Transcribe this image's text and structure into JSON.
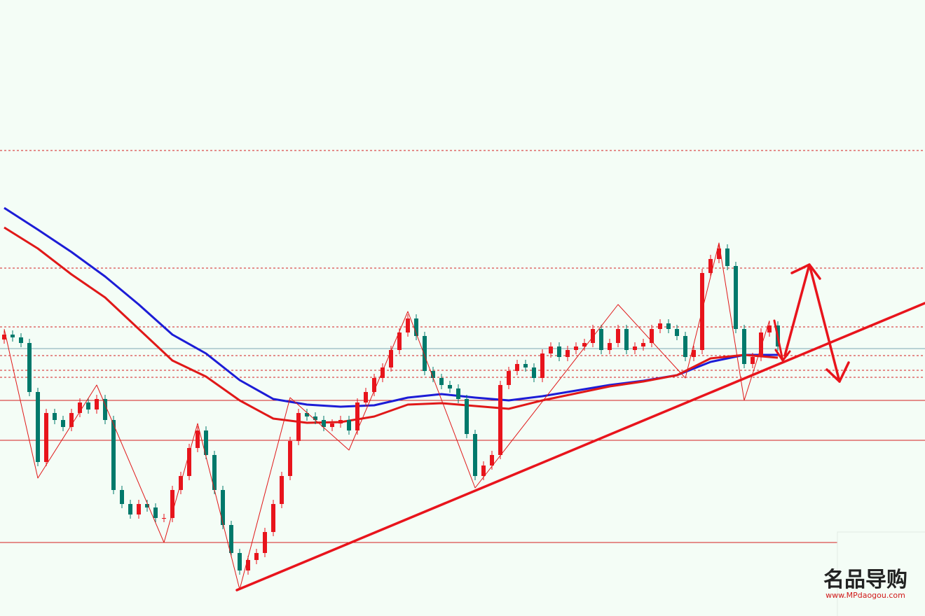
{
  "chart_data": {
    "type": "candlestick",
    "xlim": [
      -0.5,
      109.5
    ],
    "ylim": [
      0,
      880
    ],
    "up_color": "#e8141c",
    "down_color": "#00796b",
    "candles": [
      [
        395,
        408,
        389,
        402
      ],
      [
        402,
        408,
        392,
        398
      ],
      [
        398,
        404,
        384,
        390
      ],
      [
        390,
        396,
        314,
        320
      ],
      [
        320,
        326,
        214,
        220
      ],
      [
        220,
        296,
        214,
        290
      ],
      [
        290,
        296,
        274,
        280
      ],
      [
        280,
        286,
        264,
        270
      ],
      [
        270,
        296,
        264,
        290
      ],
      [
        290,
        311,
        284,
        305
      ],
      [
        305,
        311,
        289,
        295
      ],
      [
        295,
        316,
        289,
        310
      ],
      [
        310,
        316,
        274,
        280
      ],
      [
        280,
        286,
        174,
        180
      ],
      [
        180,
        186,
        154,
        160
      ],
      [
        160,
        166,
        139,
        145
      ],
      [
        145,
        166,
        139,
        160
      ],
      [
        160,
        166,
        149,
        155
      ],
      [
        155,
        161,
        134,
        140
      ],
      [
        140,
        146,
        134,
        140
      ],
      [
        140,
        186,
        134,
        180
      ],
      [
        180,
        206,
        174,
        200
      ],
      [
        200,
        246,
        194,
        240
      ],
      [
        240,
        271,
        234,
        265
      ],
      [
        265,
        271,
        224,
        230
      ],
      [
        230,
        236,
        174,
        180
      ],
      [
        180,
        186,
        124,
        130
      ],
      [
        130,
        136,
        84,
        90
      ],
      [
        90,
        96,
        59,
        65
      ],
      [
        65,
        86,
        59,
        80
      ],
      [
        80,
        96,
        74,
        90
      ],
      [
        90,
        126,
        84,
        120
      ],
      [
        120,
        166,
        114,
        160
      ],
      [
        160,
        206,
        154,
        200
      ],
      [
        200,
        256,
        194,
        250
      ],
      [
        250,
        296,
        244,
        290
      ],
      [
        290,
        296,
        279,
        285
      ],
      [
        285,
        291,
        274,
        280
      ],
      [
        280,
        286,
        264,
        270
      ],
      [
        270,
        281,
        264,
        275
      ],
      [
        275,
        286,
        269,
        280
      ],
      [
        280,
        286,
        259,
        265
      ],
      [
        265,
        311,
        259,
        305
      ],
      [
        305,
        326,
        299,
        320
      ],
      [
        320,
        346,
        314,
        340
      ],
      [
        340,
        361,
        334,
        355
      ],
      [
        355,
        386,
        349,
        380
      ],
      [
        380,
        411,
        374,
        405
      ],
      [
        405,
        431,
        399,
        425
      ],
      [
        425,
        431,
        394,
        400
      ],
      [
        400,
        406,
        344,
        350
      ],
      [
        350,
        356,
        334,
        340
      ],
      [
        340,
        346,
        324,
        330
      ],
      [
        330,
        336,
        319,
        325
      ],
      [
        325,
        331,
        304,
        310
      ],
      [
        310,
        316,
        254,
        260
      ],
      [
        260,
        266,
        194,
        200
      ],
      [
        200,
        221,
        194,
        215
      ],
      [
        215,
        236,
        209,
        230
      ],
      [
        230,
        336,
        224,
        330
      ],
      [
        330,
        356,
        324,
        350
      ],
      [
        350,
        366,
        344,
        360
      ],
      [
        360,
        366,
        349,
        355
      ],
      [
        355,
        361,
        334,
        340
      ],
      [
        340,
        381,
        334,
        375
      ],
      [
        375,
        391,
        369,
        385
      ],
      [
        385,
        391,
        364,
        370
      ],
      [
        370,
        386,
        364,
        380
      ],
      [
        380,
        391,
        374,
        385
      ],
      [
        385,
        396,
        379,
        390
      ],
      [
        390,
        416,
        384,
        410
      ],
      [
        410,
        416,
        374,
        380
      ],
      [
        380,
        396,
        374,
        390
      ],
      [
        390,
        416,
        384,
        410
      ],
      [
        410,
        416,
        374,
        380
      ],
      [
        380,
        391,
        374,
        385
      ],
      [
        385,
        396,
        379,
        390
      ],
      [
        390,
        416,
        384,
        410
      ],
      [
        410,
        424,
        404,
        418
      ],
      [
        418,
        424,
        404,
        410
      ],
      [
        410,
        416,
        394,
        400
      ],
      [
        400,
        406,
        364,
        370
      ],
      [
        370,
        386,
        364,
        380
      ],
      [
        380,
        496,
        374,
        490
      ],
      [
        490,
        516,
        484,
        510
      ],
      [
        510,
        531,
        504,
        525
      ],
      [
        525,
        531,
        494,
        500
      ],
      [
        500,
        506,
        404,
        410
      ],
      [
        410,
        416,
        354,
        360
      ],
      [
        360,
        376,
        354,
        370
      ],
      [
        370,
        411,
        364,
        405
      ],
      [
        405,
        421,
        399,
        415
      ],
      [
        415,
        421,
        379,
        385
      ]
    ],
    "moving_averages": [
      {
        "color": "#1c1cd6",
        "x": [
          0,
          4,
          8,
          12,
          16,
          20,
          24,
          28,
          32,
          36,
          40,
          44,
          48,
          52,
          56,
          60,
          64,
          68,
          72,
          76,
          80,
          84,
          88,
          92
        ],
        "values": [
          583,
          552,
          520,
          485,
          445,
          402,
          375,
          337,
          310,
          302,
          299,
          301,
          312,
          317,
          312,
          308,
          314,
          322,
          330,
          336,
          344,
          363,
          373,
          373
        ]
      },
      {
        "color": "#e01818",
        "x": [
          0,
          4,
          8,
          12,
          16,
          20,
          24,
          28,
          32,
          36,
          40,
          44,
          48,
          52,
          56,
          60,
          64,
          68,
          72,
          76,
          80,
          84,
          88,
          92
        ],
        "values": [
          555,
          525,
          488,
          455,
          410,
          365,
          342,
          308,
          282,
          276,
          277,
          285,
          302,
          304,
          300,
          296,
          308,
          318,
          328,
          335,
          344,
          368,
          373,
          369
        ]
      }
    ],
    "zigzag": {
      "color": "#e01818",
      "x": [
        0,
        4,
        11,
        19,
        23,
        28,
        34,
        41,
        48,
        56,
        73,
        81,
        85,
        88,
        91
      ],
      "values": [
        410,
        197,
        330,
        105,
        275,
        38,
        312,
        237,
        435,
        183,
        445,
        340,
        533,
        308,
        422
      ]
    },
    "levels": [
      {
        "value": 665,
        "style": "dashed",
        "color": "#d42020"
      },
      {
        "value": 497,
        "style": "dashed",
        "color": "#d42020"
      },
      {
        "value": 413,
        "style": "dashed",
        "color": "#d42020"
      },
      {
        "value": 382,
        "style": "solid",
        "color": "#7ea6b4"
      },
      {
        "value": 372,
        "style": "dashed",
        "color": "#d42020"
      },
      {
        "value": 351,
        "style": "dashed",
        "color": "#d42020"
      },
      {
        "value": 341,
        "style": "dashed",
        "color": "#d42020"
      },
      {
        "value": 308,
        "style": "solid",
        "color": "#d42020"
      },
      {
        "value": 251,
        "style": "solid",
        "color": "#d42020"
      },
      {
        "value": 105,
        "style": "solid",
        "color": "#d42020"
      }
    ]
  },
  "watermark": {
    "title": "名品导购",
    "url": "www.MPdaogou.com"
  }
}
